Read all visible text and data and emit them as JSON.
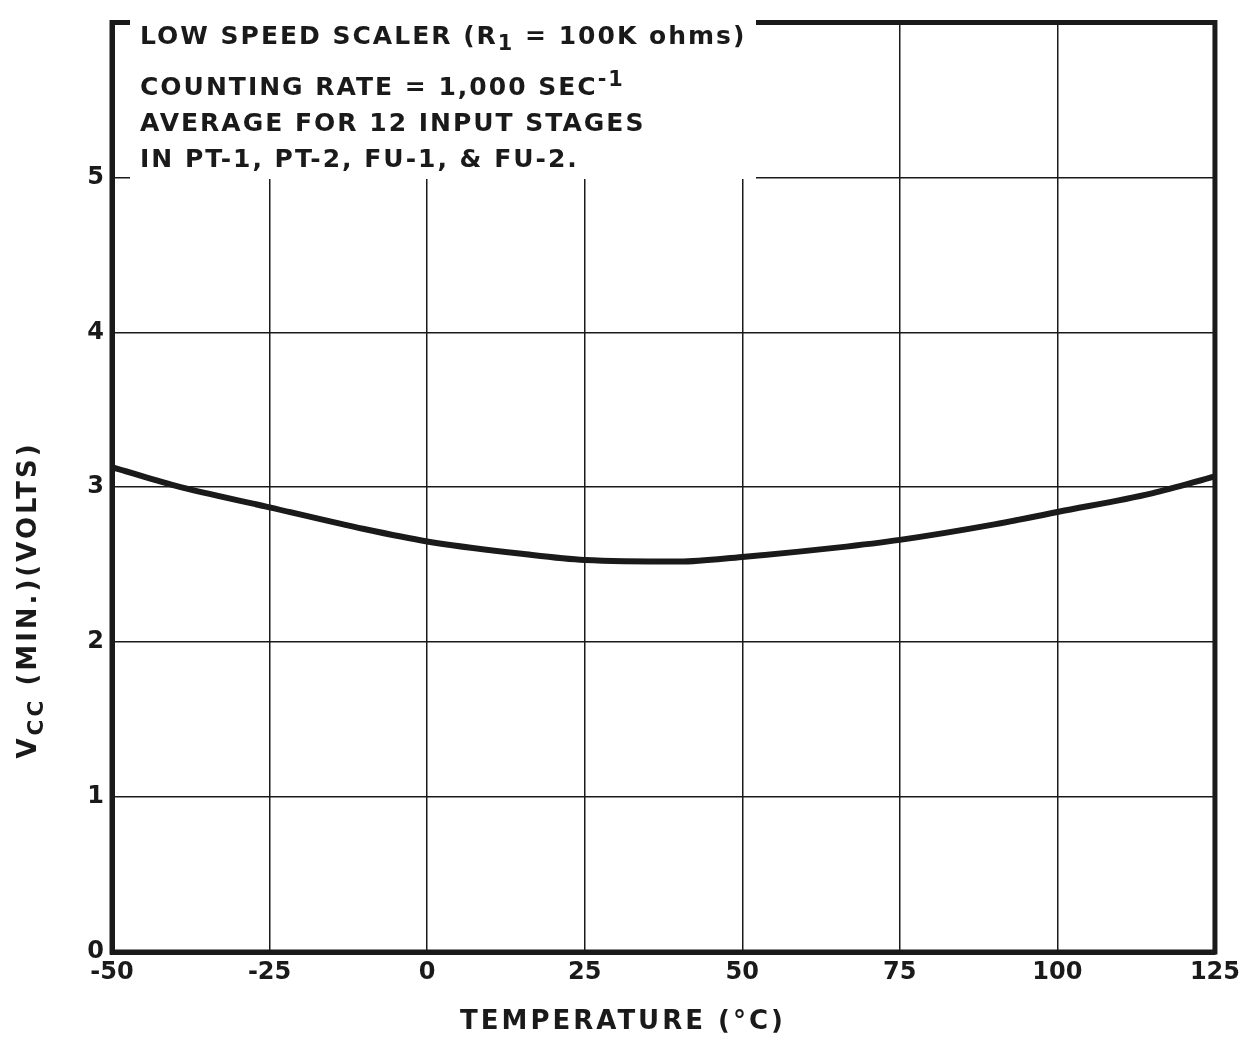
{
  "chart_data": {
    "type": "line",
    "xlabel": "TEMPERATURE (°C)",
    "ylabel": "V$_{CC}$ (MIN.)(VOLTS)",
    "annotations": [
      "LOW SPEED SCALER (R$_{1}$ = 100K ohms)",
      "COUNTING RATE = 1,000 SEC$^{-1}$",
      "AVERAGE FOR 12 INPUT STAGES",
      "IN PT-1, PT-2, FU-1, & FU-2."
    ],
    "x": [
      -50,
      -40,
      -25,
      -10,
      0,
      15,
      25,
      40,
      50,
      65,
      75,
      90,
      100,
      115,
      125
    ],
    "series": [
      {
        "color": "#1a1a1a",
        "values": [
          3.13,
          3.01,
          2.87,
          2.73,
          2.65,
          2.57,
          2.53,
          2.52,
          2.55,
          2.61,
          2.66,
          2.76,
          2.84,
          2.96,
          3.07
        ]
      }
    ],
    "xlim": [
      -50,
      125
    ],
    "xticks": [
      -50,
      -25,
      0,
      25,
      50,
      75,
      100,
      125
    ],
    "ylim": [
      0,
      6
    ],
    "yticks": [
      0,
      1,
      2,
      3,
      4,
      5,
      {
        "value": 6,
        "label": null
      }
    ],
    "grid": true,
    "legend": false,
    "marker": "none",
    "line_style": "solid"
  }
}
